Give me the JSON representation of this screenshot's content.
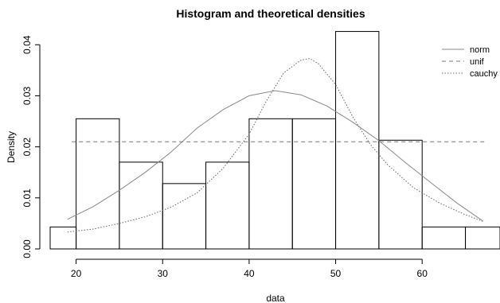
{
  "chart_data": {
    "type": "bar",
    "title": "Histogram and theoretical densities",
    "xlabel": "data",
    "ylabel": "Density",
    "xlim": [
      17,
      69
    ],
    "ylim": [
      0,
      0.043
    ],
    "x_ticks": [
      20,
      30,
      40,
      50,
      60
    ],
    "y_ticks": [
      0.0,
      0.01,
      0.02,
      0.03,
      0.04
    ],
    "y_tick_labels": [
      "0.00",
      "0.01",
      "0.02",
      "0.03",
      "0.04"
    ],
    "grid": false,
    "legend_position": "top-right",
    "histogram": {
      "bins": [
        {
          "x0": 15,
          "x1": 20,
          "density": 0.0043
        },
        {
          "x0": 20,
          "x1": 25,
          "density": 0.0255
        },
        {
          "x0": 25,
          "x1": 30,
          "density": 0.017
        },
        {
          "x0": 30,
          "x1": 35,
          "density": 0.0128
        },
        {
          "x0": 35,
          "x1": 40,
          "density": 0.017
        },
        {
          "x0": 40,
          "x1": 45,
          "density": 0.0255
        },
        {
          "x0": 45,
          "x1": 50,
          "density": 0.0255
        },
        {
          "x0": 50,
          "x1": 55,
          "density": 0.0426
        },
        {
          "x0": 55,
          "x1": 60,
          "density": 0.0213
        },
        {
          "x0": 60,
          "x1": 65,
          "density": 0.0043
        },
        {
          "x0": 65,
          "x1": 70,
          "density": 0.0043
        }
      ]
    },
    "series": [
      {
        "name": "norm",
        "style": "solid",
        "color": "#888888",
        "x": [
          19,
          22,
          25,
          28,
          31,
          34,
          37,
          40,
          43,
          46,
          49,
          52,
          55,
          58,
          61,
          64,
          67
        ],
        "y": [
          0.0058,
          0.0083,
          0.0115,
          0.015,
          0.019,
          0.0237,
          0.0273,
          0.03,
          0.031,
          0.0302,
          0.028,
          0.0248,
          0.0212,
          0.017,
          0.013,
          0.009,
          0.0055
        ]
      },
      {
        "name": "unif",
        "style": "dashed",
        "color": "#777777",
        "x": [
          19.5,
          67.5
        ],
        "y": [
          0.021,
          0.021
        ]
      },
      {
        "name": "cauchy",
        "style": "dotted",
        "color": "#666666",
        "x": [
          19,
          22,
          25,
          28,
          31,
          34,
          37,
          40,
          42,
          44,
          46,
          47,
          48,
          50,
          52,
          54,
          56,
          59,
          62,
          65,
          67
        ],
        "y": [
          0.0033,
          0.0039,
          0.005,
          0.0063,
          0.0082,
          0.011,
          0.0158,
          0.0225,
          0.029,
          0.0345,
          0.037,
          0.0373,
          0.0363,
          0.0322,
          0.0258,
          0.0205,
          0.0165,
          0.012,
          0.009,
          0.0067,
          0.0054
        ]
      }
    ]
  }
}
